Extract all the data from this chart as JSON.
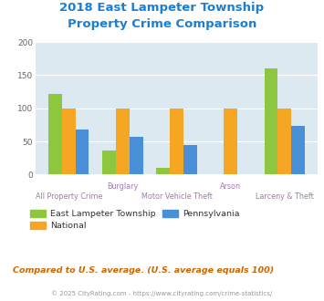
{
  "title_line1": "2018 East Lampeter Township",
  "title_line2": "Property Crime Comparison",
  "title_color": "#1a7fd4",
  "categories": [
    "All Property Crime",
    "Burglary",
    "Motor Vehicle Theft",
    "Arson",
    "Larceny & Theft"
  ],
  "upper_labels": {
    "1": "Burglary",
    "3": "Arson"
  },
  "lower_labels": {
    "0": "All Property Crime",
    "2": "Motor Vehicle Theft",
    "4": "Larceny & Theft"
  },
  "east_lampeter": [
    122,
    36,
    10,
    0,
    160
  ],
  "national": [
    100,
    100,
    100,
    100,
    100
  ],
  "pennsylvania": [
    68,
    57,
    45,
    0,
    74
  ],
  "colors": {
    "east_lampeter": "#8dc63f",
    "national": "#f5a623",
    "pennsylvania": "#4a90d9"
  },
  "ylim": [
    0,
    200
  ],
  "yticks": [
    0,
    50,
    100,
    150,
    200
  ],
  "bg_color": "#dce9f0",
  "label_color": "#a07ab0",
  "footnote": "Compared to U.S. average. (U.S. average equals 100)",
  "footnote2": "© 2025 CityRating.com - https://www.cityrating.com/crime-statistics/",
  "footnote_color": "#cc6600",
  "footnote2_color": "#999999",
  "bar_width": 0.25
}
